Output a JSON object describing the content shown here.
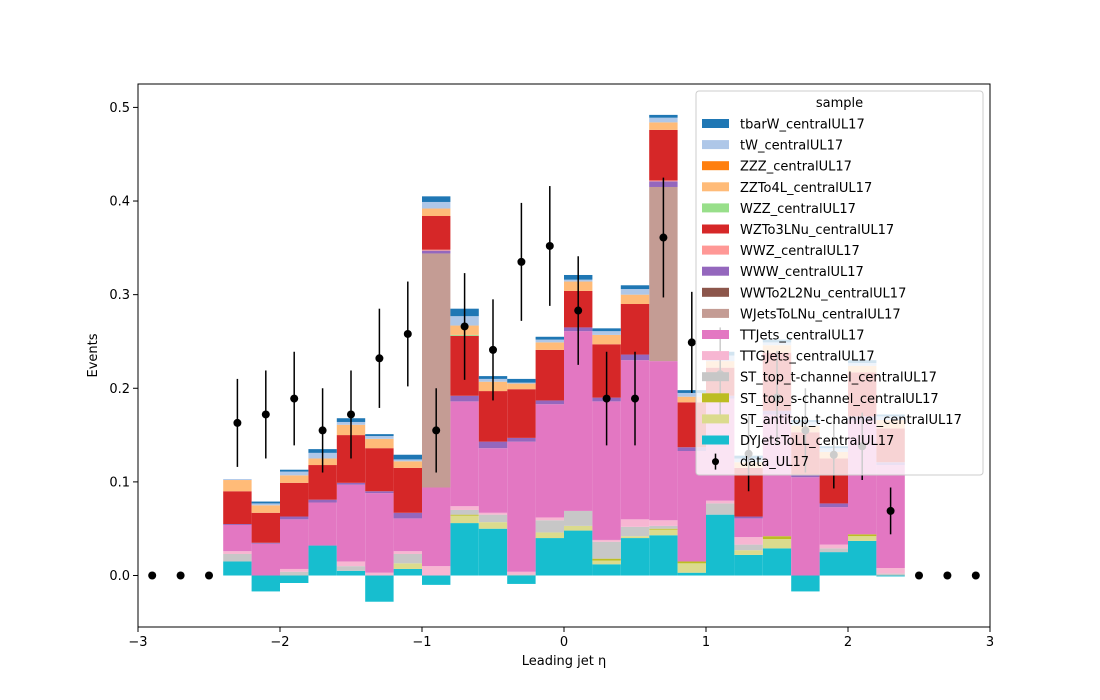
{
  "chart_data": {
    "type": "bar",
    "subtype": "stacked-histogram-with-data-points",
    "xlabel": "Leading jet  η",
    "ylabel": "Events",
    "xlim": [
      -3,
      3
    ],
    "ylim": [
      -0.055,
      0.525
    ],
    "x_ticks": [
      -3,
      -2,
      -1,
      0,
      1,
      2,
      3
    ],
    "x_tick_labels": [
      "−3",
      "−2",
      "−1",
      "0",
      "1",
      "2",
      "3"
    ],
    "y_ticks": [
      0.0,
      0.1,
      0.2,
      0.3,
      0.4,
      0.5
    ],
    "y_tick_labels": [
      "0.0",
      "0.1",
      "0.2",
      "0.3",
      "0.4",
      "0.5"
    ],
    "grid": false,
    "legend_title": "sample",
    "legend_placement": "top-right",
    "bin_edges": [
      -3.0,
      -2.8,
      -2.6,
      -2.4,
      -2.2,
      -2.0,
      -1.8,
      -1.6,
      -1.4,
      -1.2,
      -1.0,
      -0.8,
      -0.6,
      -0.4,
      -0.2,
      0.0,
      0.2,
      0.4,
      0.6,
      0.8,
      1.0,
      1.2,
      1.4,
      1.6,
      1.8,
      2.0,
      2.2,
      2.4,
      2.6,
      2.8,
      3.0
    ],
    "series": [
      {
        "name": "DYJetsToLL_centralUL17",
        "color": "#17becf",
        "values": [
          0,
          0,
          0,
          0.015,
          -0.017,
          -0.008,
          0.032,
          0.005,
          -0.028,
          0.007,
          -0.01,
          0.056,
          0.05,
          -0.009,
          0.04,
          0.048,
          0.012,
          0.04,
          0.043,
          0.003,
          0.065,
          0.022,
          0.029,
          -0.017,
          0.025,
          0.037,
          -0.001,
          0,
          0,
          0
        ]
      },
      {
        "name": "ST_antitop_t-channel_centralUL17",
        "color": "#dbdb8d",
        "values": [
          0,
          0,
          0,
          0,
          0,
          0,
          0,
          0,
          0,
          0.006,
          0,
          0.008,
          0.007,
          0,
          0.006,
          0.005,
          0.004,
          0.002,
          0.006,
          0.01,
          0,
          0.005,
          0.01,
          0,
          0,
          0.005,
          0,
          0,
          0,
          0
        ]
      },
      {
        "name": "ST_top_s-channel_centralUL17",
        "color": "#bcbd22",
        "values": [
          0,
          0,
          0,
          0,
          0,
          0,
          0,
          0,
          0,
          0,
          0,
          0.001,
          0,
          0,
          0,
          0,
          0.002,
          0,
          0.001,
          0.002,
          0,
          0,
          0.003,
          0,
          0,
          0.002,
          0,
          0,
          0,
          0
        ]
      },
      {
        "name": "ST_top_t-channel_centralUL17",
        "color": "#c7c7c7",
        "values": [
          0,
          0,
          0,
          0.008,
          0,
          0.004,
          0,
          0.005,
          0,
          0.01,
          0,
          0.005,
          0.008,
          0.001,
          0.013,
          0.016,
          0.018,
          0.01,
          0.003,
          0,
          0.012,
          0.006,
          0,
          0,
          0.004,
          0,
          0.002,
          0,
          0,
          0
        ]
      },
      {
        "name": "TTGJets_centralUL17",
        "color": "#f7b6d2",
        "values": [
          0,
          0,
          0,
          0.003,
          0,
          0.003,
          0,
          0.005,
          0.003,
          0.003,
          0.01,
          0.004,
          0.002,
          0.003,
          0.003,
          0,
          0.002,
          0.008,
          0.006,
          0,
          0.003,
          0.008,
          0,
          0,
          0.004,
          0,
          0.006,
          0,
          0,
          0
        ]
      },
      {
        "name": "TTJets_centralUL17",
        "color": "#e377c2",
        "values": [
          0,
          0,
          0,
          0.028,
          0.034,
          0.053,
          0.046,
          0.082,
          0.085,
          0.035,
          0.084,
          0.112,
          0.069,
          0.139,
          0.121,
          0.192,
          0.148,
          0.17,
          0.17,
          0.118,
          0.109,
          0.02,
          0.13,
          0.105,
          0.04,
          0.122,
          0.11,
          0,
          0,
          0
        ]
      },
      {
        "name": "WJetsToLNu_centralUL17",
        "color": "#c49c94",
        "values": [
          0,
          0,
          0,
          0,
          0,
          0,
          0,
          0,
          0,
          0,
          0.25,
          0,
          0,
          0,
          0,
          0,
          0,
          0,
          0.186,
          0,
          0,
          0,
          0,
          0,
          0,
          0,
          0,
          0,
          0,
          0
        ]
      },
      {
        "name": "WWTo2L2Nu_centralUL17",
        "color": "#8c564b",
        "values": [
          0,
          0,
          0,
          0,
          0,
          0,
          0,
          0,
          0,
          0,
          0,
          0,
          0,
          0,
          0,
          0,
          0,
          0,
          0,
          0,
          0,
          0,
          0,
          0,
          0,
          0,
          0,
          0,
          0,
          0
        ]
      },
      {
        "name": "WWW_centralUL17",
        "color": "#9467bd",
        "values": [
          0,
          0,
          0,
          0.001,
          0.001,
          0.003,
          0.003,
          0.002,
          0.002,
          0.006,
          0.003,
          0.006,
          0.007,
          0.004,
          0.004,
          0.004,
          0.004,
          0.006,
          0.006,
          0.004,
          0.003,
          0.002,
          0.004,
          0.002,
          0.004,
          0.004,
          0.003,
          0,
          0,
          0
        ]
      },
      {
        "name": "WWZ_centralUL17",
        "color": "#ff9896",
        "values": [
          0,
          0,
          0,
          0,
          0,
          0,
          0,
          0,
          0,
          0,
          0.001,
          0,
          0,
          0,
          0,
          0,
          0,
          0,
          0.001,
          0,
          0,
          0,
          0,
          0,
          0,
          0,
          0,
          0,
          0,
          0
        ]
      },
      {
        "name": "WZTo3LNu_centralUL17",
        "color": "#d62728",
        "values": [
          0,
          0,
          0,
          0.035,
          0.032,
          0.036,
          0.037,
          0.051,
          0.046,
          0.048,
          0.036,
          0.064,
          0.054,
          0.052,
          0.054,
          0.039,
          0.057,
          0.054,
          0.054,
          0.048,
          0.03,
          0.052,
          0.062,
          0.046,
          0.048,
          0.047,
          0.036,
          0,
          0,
          0
        ]
      },
      {
        "name": "WZZ_centralUL17",
        "color": "#98df8a",
        "values": [
          0,
          0,
          0,
          0,
          0,
          0,
          0,
          0,
          0,
          0,
          0,
          0.001,
          0,
          0,
          0,
          0,
          0,
          0,
          0,
          0,
          0,
          0,
          0,
          0,
          0,
          0,
          0,
          0,
          0,
          0
        ]
      },
      {
        "name": "ZZTo4L_centralUL17",
        "color": "#ffbb78",
        "values": [
          0,
          0,
          0,
          0.012,
          0.008,
          0.008,
          0.007,
          0.011,
          0.01,
          0.007,
          0.008,
          0.01,
          0.01,
          0.006,
          0.008,
          0.01,
          0.01,
          0.01,
          0.008,
          0.006,
          0.007,
          0.006,
          0.008,
          0.007,
          0.007,
          0.007,
          0.009,
          0,
          0,
          0
        ]
      },
      {
        "name": "ZZZ_centralUL17",
        "color": "#ff7f0e",
        "values": [
          0,
          0,
          0,
          0,
          0,
          0,
          0,
          0,
          0,
          0,
          0,
          0,
          0,
          0,
          0,
          0,
          0,
          0,
          0,
          0,
          0,
          0,
          0,
          0,
          0,
          0,
          0,
          0,
          0,
          0
        ]
      },
      {
        "name": "tW_centralUL17",
        "color": "#aec7e8",
        "values": [
          0,
          0,
          0,
          0.001,
          0.002,
          0.004,
          0.006,
          0.003,
          0.003,
          0.002,
          0.007,
          0.01,
          0.003,
          0.001,
          0.003,
          0.002,
          0.004,
          0.006,
          0.005,
          0.004,
          0.006,
          0.004,
          0.003,
          0.004,
          0.004,
          0.003,
          0.004,
          0,
          0,
          0
        ]
      },
      {
        "name": "tbarW_centralUL17",
        "color": "#1f77b4",
        "values": [
          0,
          0,
          0,
          0,
          0.002,
          0.002,
          0.004,
          0.004,
          0.002,
          0.005,
          0.006,
          0.008,
          0.003,
          0.004,
          0.003,
          0.005,
          0.003,
          0.004,
          0.003,
          0.003,
          0.004,
          0.003,
          0.003,
          0.002,
          0.002,
          0.003,
          0.002,
          0,
          0,
          0
        ]
      }
    ],
    "data_series": {
      "name": "data_UL17",
      "color": "#000000",
      "x": [
        -2.9,
        -2.7,
        -2.5,
        -2.3,
        -2.1,
        -1.9,
        -1.7,
        -1.5,
        -1.3,
        -1.1,
        -0.9,
        -0.7,
        -0.5,
        -0.3,
        -0.1,
        0.1,
        0.3,
        0.5,
        0.7,
        0.9,
        1.1,
        1.3,
        1.5,
        1.7,
        1.9,
        2.1,
        2.3,
        2.5,
        2.7,
        2.9
      ],
      "y": [
        0,
        0,
        0,
        0.163,
        0.172,
        0.189,
        0.155,
        0.172,
        0.232,
        0.258,
        0.155,
        0.266,
        0.241,
        0.335,
        0.352,
        0.283,
        0.189,
        0.189,
        0.361,
        0.249,
        0.215,
        0.13,
        0.19,
        0.155,
        0.129,
        0.138,
        0.069,
        0,
        0,
        0
      ],
      "yerr": [
        0,
        0,
        0,
        0.047,
        0.047,
        0.05,
        0.045,
        0.047,
        0.053,
        0.056,
        0.045,
        0.057,
        0.054,
        0.063,
        0.064,
        0.058,
        0.05,
        0.05,
        0.064,
        0.054,
        0.05,
        0.04,
        0.05,
        0.045,
        0.036,
        0.036,
        0.025,
        0,
        0,
        0
      ]
    }
  }
}
